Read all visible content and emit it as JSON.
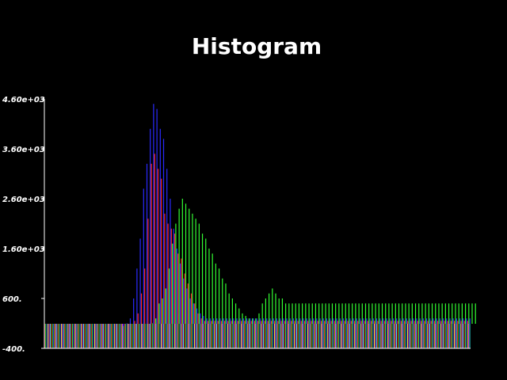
{
  "chart_data": {
    "type": "bar",
    "title": "Histogram",
    "xlabel": "",
    "ylabel": "",
    "ylim": [
      -400,
      4600
    ],
    "yticks": [
      "-400.",
      "600.",
      "1.60e+03",
      "2.60e+03",
      "3.60e+03",
      "4.60e+03"
    ],
    "ytick_values": [
      -400,
      600,
      1600,
      2600,
      3600,
      4600
    ],
    "grid": false,
    "legend": "none",
    "bins": 128,
    "colors": {
      "background": "#000000",
      "axis": "#ffffff",
      "text": "#ffffff",
      "red": "#ff2a2a",
      "green": "#33ff33",
      "blue": "#2a2aff"
    },
    "series": [
      {
        "color": "red",
        "values": [
          0,
          0,
          0,
          0,
          0,
          0,
          0,
          0,
          0,
          0,
          0,
          0,
          0,
          0,
          0,
          0,
          0,
          0,
          0,
          0,
          0,
          0,
          0,
          0,
          0,
          0,
          0,
          150,
          300,
          700,
          1200,
          2200,
          3300,
          3500,
          3200,
          3000,
          2300,
          2100,
          2000,
          1900,
          1500,
          1400,
          1100,
          900,
          700,
          500,
          300,
          200,
          150,
          150,
          150,
          150,
          150,
          150,
          150,
          150,
          150,
          150,
          150,
          150,
          150,
          150,
          150,
          150,
          150,
          150,
          150,
          150,
          150,
          150,
          150,
          150,
          150,
          150,
          150,
          150,
          150,
          150,
          150,
          150,
          150,
          150,
          150,
          150,
          150,
          150,
          150,
          150,
          150,
          150,
          150,
          150,
          150,
          150,
          150,
          150,
          150,
          150,
          150,
          150,
          150,
          150,
          150,
          150,
          150,
          150,
          150,
          150,
          150,
          150,
          150,
          150,
          150,
          150,
          150,
          150,
          150,
          150,
          150,
          150,
          150,
          150,
          150,
          150,
          150,
          150,
          150,
          150
        ]
      },
      {
        "color": "green",
        "values": [
          0,
          0,
          0,
          0,
          0,
          0,
          0,
          0,
          0,
          0,
          0,
          0,
          0,
          0,
          0,
          0,
          0,
          0,
          0,
          0,
          0,
          0,
          0,
          0,
          0,
          0,
          0,
          0,
          0,
          0,
          0,
          0,
          100,
          200,
          500,
          600,
          800,
          1200,
          1700,
          2100,
          2400,
          2600,
          2500,
          2400,
          2300,
          2200,
          2100,
          1900,
          1800,
          1600,
          1500,
          1300,
          1200,
          1000,
          900,
          700,
          600,
          500,
          400,
          300,
          250,
          200,
          200,
          200,
          300,
          500,
          600,
          700,
          800,
          700,
          600,
          600,
          500,
          500,
          500,
          500,
          500,
          500,
          500,
          500,
          500,
          500,
          500,
          500,
          500,
          500,
          500,
          500,
          500,
          500,
          500,
          500,
          500,
          500,
          500,
          500,
          500,
          500,
          500,
          500,
          500,
          500,
          500,
          500,
          500,
          500,
          500,
          500,
          500,
          500,
          500,
          500,
          500,
          500,
          500,
          500,
          500,
          500,
          500,
          500,
          500,
          500,
          500,
          500,
          500,
          500,
          500,
          500,
          500,
          500
        ]
      },
      {
        "color": "blue",
        "values": [
          0,
          0,
          0,
          0,
          0,
          0,
          0,
          0,
          0,
          0,
          0,
          0,
          0,
          0,
          0,
          0,
          0,
          0,
          0,
          0,
          0,
          0,
          0,
          50,
          100,
          200,
          600,
          1200,
          1800,
          2800,
          3300,
          4000,
          4500,
          4400,
          4000,
          3800,
          3200,
          2600,
          2000,
          1600,
          1300,
          1000,
          800,
          600,
          500,
          400,
          300,
          250,
          200,
          200,
          200,
          200,
          200,
          200,
          200,
          200,
          200,
          200,
          200,
          200,
          200,
          200,
          200,
          200,
          200,
          200,
          200,
          200,
          200,
          200,
          200,
          200,
          200,
          200,
          200,
          200,
          200,
          200,
          200,
          200,
          200,
          200,
          200,
          200,
          200,
          200,
          200,
          200,
          200,
          200,
          200,
          200,
          200,
          200,
          200,
          200,
          200,
          200,
          200,
          200,
          200,
          200,
          200,
          200,
          200,
          200,
          200,
          200,
          200,
          200,
          200,
          200,
          200,
          200,
          200,
          200,
          200,
          200,
          200,
          200,
          200,
          200,
          200,
          200,
          200,
          200,
          200,
          200
        ]
      }
    ]
  }
}
